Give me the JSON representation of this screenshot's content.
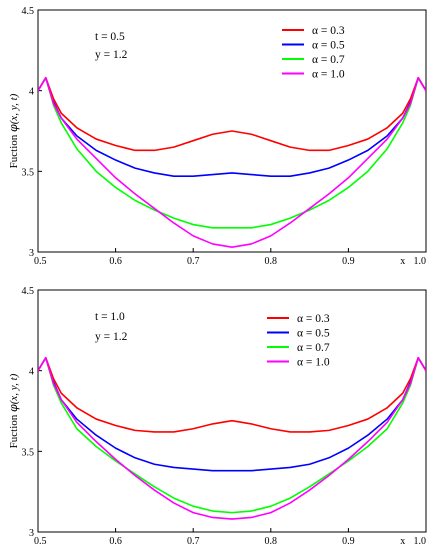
{
  "chart_data": [
    {
      "type": "line",
      "xlabel": "x",
      "ylabel": "Fuction φ(x, y, t)",
      "ylabel_parts": [
        "Fuction ",
        "φ",
        "(x, y, t)"
      ],
      "annotations": [
        "t = 0.5",
        "y = 1.2"
      ],
      "xlim": [
        0.5,
        1.0
      ],
      "ylim": [
        3,
        4.5
      ],
      "x_ticks": [
        "0.5",
        "0.6",
        "0.7",
        "0.8",
        "0.9",
        "1.0"
      ],
      "y_ticks": [
        "3",
        "3.5",
        "4",
        "4.5"
      ],
      "legend_position": "top-right",
      "grid": false,
      "x": [
        0.5,
        0.51,
        0.52,
        0.53,
        0.55,
        0.575,
        0.6,
        0.625,
        0.65,
        0.675,
        0.7,
        0.725,
        0.75,
        0.775,
        0.8,
        0.825,
        0.85,
        0.875,
        0.9,
        0.925,
        0.95,
        0.97,
        0.98,
        0.99,
        1.0
      ],
      "series": [
        {
          "name": "α = 0.3",
          "color": "#ff0000",
          "values": [
            4.0,
            4.08,
            3.95,
            3.86,
            3.77,
            3.7,
            3.66,
            3.63,
            3.63,
            3.65,
            3.69,
            3.73,
            3.75,
            3.73,
            3.69,
            3.65,
            3.63,
            3.63,
            3.66,
            3.7,
            3.77,
            3.86,
            3.95,
            4.08,
            4.0
          ]
        },
        {
          "name": "α = 0.5",
          "color": "#0000ff",
          "values": [
            4.0,
            4.08,
            3.93,
            3.83,
            3.72,
            3.63,
            3.57,
            3.52,
            3.49,
            3.47,
            3.47,
            3.48,
            3.49,
            3.48,
            3.47,
            3.47,
            3.49,
            3.52,
            3.57,
            3.63,
            3.72,
            3.83,
            3.93,
            4.08,
            4.0
          ]
        },
        {
          "name": "α = 0.7",
          "color": "#00ff00",
          "values": [
            4.0,
            4.08,
            3.91,
            3.8,
            3.64,
            3.5,
            3.4,
            3.32,
            3.26,
            3.21,
            3.17,
            3.15,
            3.15,
            3.15,
            3.17,
            3.21,
            3.26,
            3.32,
            3.4,
            3.5,
            3.64,
            3.8,
            3.91,
            4.08,
            4.0
          ]
        },
        {
          "name": "α = 1.0",
          "color": "#ff00ff",
          "values": [
            4.0,
            4.08,
            3.92,
            3.83,
            3.7,
            3.58,
            3.46,
            3.36,
            3.27,
            3.18,
            3.1,
            3.05,
            3.03,
            3.05,
            3.1,
            3.18,
            3.27,
            3.36,
            3.46,
            3.58,
            3.7,
            3.83,
            3.92,
            4.08,
            4.0
          ]
        }
      ]
    },
    {
      "type": "line",
      "xlabel": "x",
      "ylabel": "Fuction φ(x, y, t)",
      "ylabel_parts": [
        "Fuction ",
        "φ",
        "(x, y, t)"
      ],
      "annotations": [
        "t = 1.0",
        "y = 1.2"
      ],
      "xlim": [
        0.5,
        1.0
      ],
      "ylim": [
        3,
        4.5
      ],
      "x_ticks": [
        "0.5",
        "0.6",
        "0.7",
        "0.8",
        "0.9",
        "1.0"
      ],
      "y_ticks": [
        "3",
        "3.5",
        "4",
        "4.5"
      ],
      "legend_position": "top-right",
      "grid": false,
      "x": [
        0.5,
        0.51,
        0.52,
        0.53,
        0.55,
        0.575,
        0.6,
        0.625,
        0.65,
        0.675,
        0.7,
        0.725,
        0.75,
        0.775,
        0.8,
        0.825,
        0.85,
        0.875,
        0.9,
        0.925,
        0.95,
        0.97,
        0.98,
        0.99,
        1.0
      ],
      "series": [
        {
          "name": "α = 0.3",
          "color": "#ff0000",
          "values": [
            4.0,
            4.08,
            3.95,
            3.86,
            3.77,
            3.7,
            3.66,
            3.63,
            3.62,
            3.62,
            3.64,
            3.67,
            3.69,
            3.67,
            3.64,
            3.62,
            3.62,
            3.63,
            3.66,
            3.7,
            3.77,
            3.86,
            3.95,
            4.08,
            4.0
          ]
        },
        {
          "name": "α = 0.5",
          "color": "#0000ff",
          "values": [
            4.0,
            4.08,
            3.93,
            3.82,
            3.7,
            3.6,
            3.52,
            3.46,
            3.42,
            3.4,
            3.39,
            3.38,
            3.38,
            3.38,
            3.39,
            3.4,
            3.42,
            3.46,
            3.52,
            3.6,
            3.7,
            3.82,
            3.93,
            4.08,
            4.0
          ]
        },
        {
          "name": "α = 0.7",
          "color": "#00ff00",
          "values": [
            4.0,
            4.08,
            3.91,
            3.8,
            3.64,
            3.53,
            3.44,
            3.36,
            3.28,
            3.21,
            3.16,
            3.13,
            3.12,
            3.13,
            3.16,
            3.21,
            3.28,
            3.36,
            3.44,
            3.53,
            3.64,
            3.8,
            3.91,
            4.08,
            4.0
          ]
        },
        {
          "name": "α = 1.0",
          "color": "#ff00ff",
          "values": [
            4.0,
            4.08,
            3.92,
            3.82,
            3.68,
            3.56,
            3.45,
            3.35,
            3.26,
            3.18,
            3.12,
            3.09,
            3.08,
            3.09,
            3.12,
            3.18,
            3.26,
            3.35,
            3.45,
            3.56,
            3.68,
            3.82,
            3.92,
            4.08,
            4.0
          ]
        }
      ]
    }
  ]
}
